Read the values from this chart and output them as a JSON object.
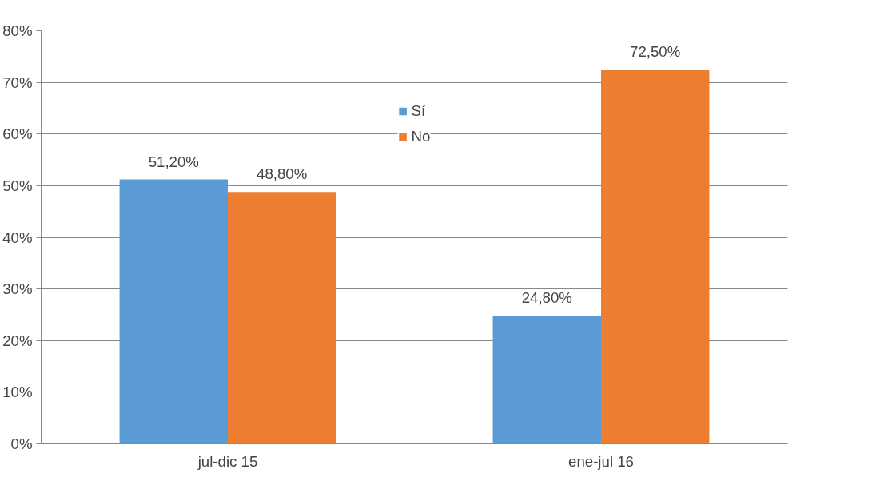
{
  "chart_data": {
    "type": "bar",
    "categories": [
      "jul-dic 15",
      "ene-jul 16"
    ],
    "series": [
      {
        "name": "Sí",
        "color": "#5b9bd5",
        "values": [
          51.2,
          24.8
        ],
        "value_labels": [
          "51,20%",
          "24,80%"
        ]
      },
      {
        "name": "No",
        "color": "#ed7d31",
        "values": [
          48.8,
          72.5
        ],
        "value_labels": [
          "48,80%",
          "72,50%"
        ]
      }
    ],
    "ylim": [
      0,
      80
    ],
    "yticks": [
      {
        "value": 0,
        "label": "0%"
      },
      {
        "value": 10,
        "label": "10%"
      },
      {
        "value": 20,
        "label": "20%"
      },
      {
        "value": 30,
        "label": "30%"
      },
      {
        "value": 40,
        "label": "40%"
      },
      {
        "value": 50,
        "label": "50%"
      },
      {
        "value": 60,
        "label": "60%"
      },
      {
        "value": 70,
        "label": "70%"
      },
      {
        "value": 80,
        "label": "80%"
      }
    ],
    "grid": "y",
    "legend": "top"
  }
}
